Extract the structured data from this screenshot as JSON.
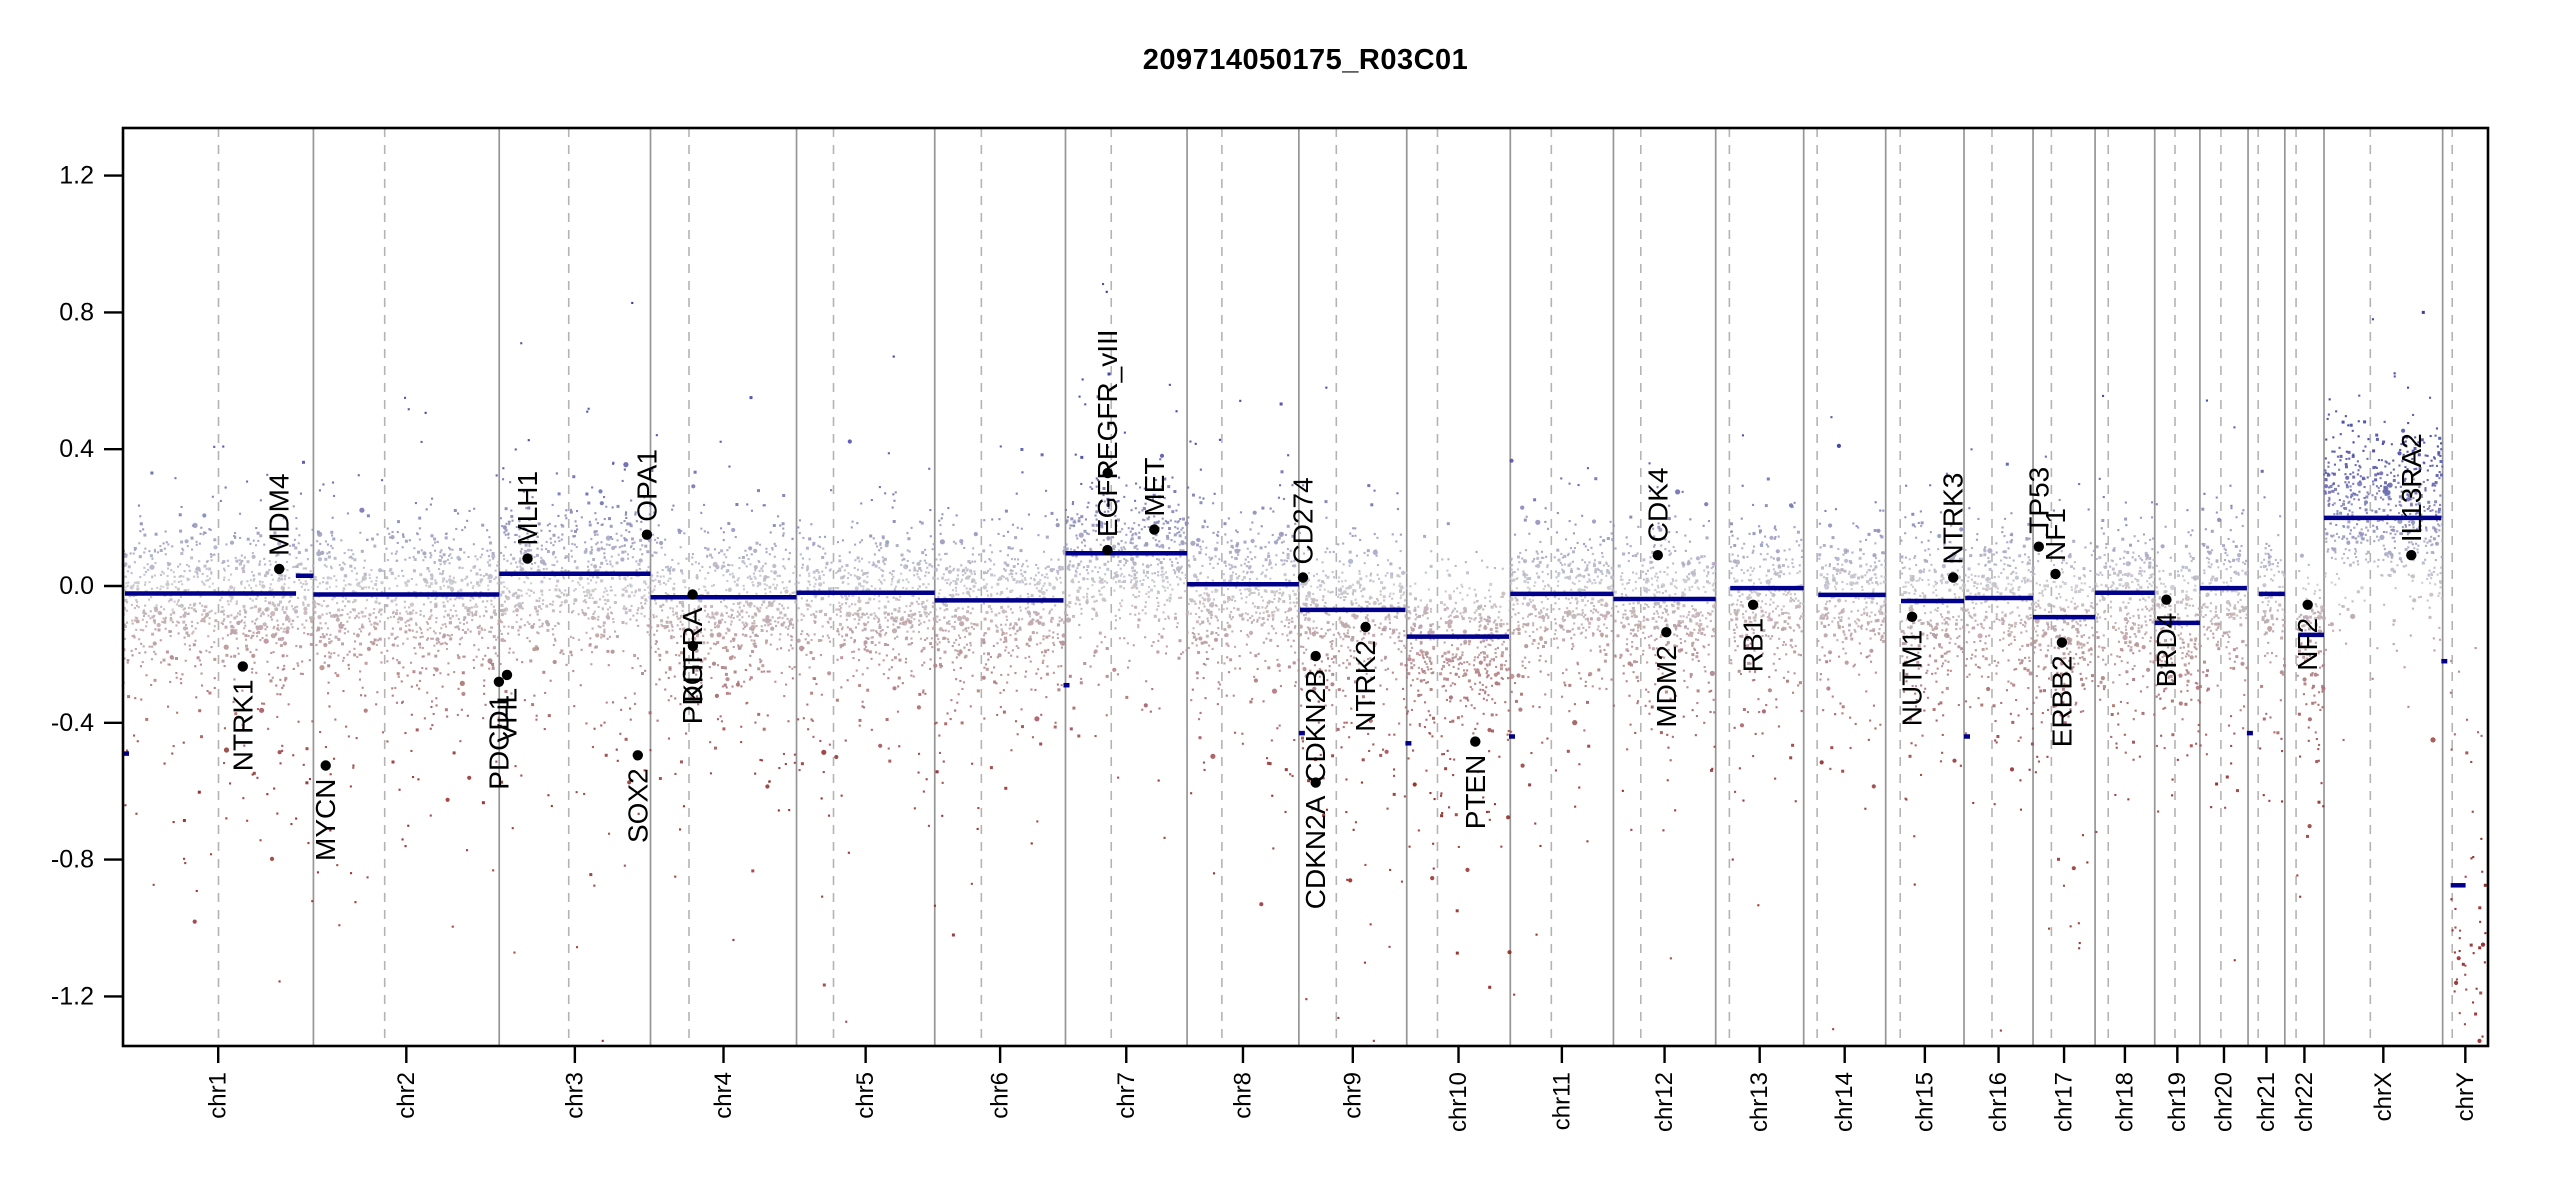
{
  "title": "209714050175_R03C01",
  "chart_data": {
    "type": "scatter",
    "subtype": "genome-wide-copy-number-plot",
    "title": "209714050175_R03C01",
    "xlabel": "",
    "ylabel": "",
    "grid": "chromosome-boundaries-solid, centromeres-dashed",
    "legend": "none",
    "ylim": [
      -1.34,
      1.34
    ],
    "y_ticks": [
      1.2,
      0.8,
      0.4,
      0.0,
      -0.4,
      -0.8,
      -1.2
    ],
    "y_tick_labels": [
      "1.2",
      "0.8",
      "0.4",
      "0.0",
      "-0.4",
      "-0.8",
      "-1.2"
    ],
    "x_tick_labels": [
      "chr1",
      "chr2",
      "chr3",
      "chr4",
      "chr5",
      "chr6",
      "chr7",
      "chr8",
      "chr9",
      "chr10",
      "chr11",
      "chr12",
      "chr13",
      "chr14",
      "chr15",
      "chr16",
      "chr17",
      "chr18",
      "chr19",
      "chr20",
      "chr21",
      "chr22",
      "chrX",
      "chrY"
    ],
    "chromosomes": [
      {
        "name": "chr1",
        "length_mb": 249.25,
        "centromere_mb": 125.0,
        "acrocentric": false,
        "baseline": -0.022,
        "down_tail": 1.15,
        "up_tail": 1.0
      },
      {
        "name": "chr2",
        "length_mb": 243.2,
        "centromere_mb": 93.3,
        "acrocentric": false,
        "baseline": -0.025,
        "down_tail": 1.0,
        "up_tail": 1.0
      },
      {
        "name": "chr3",
        "length_mb": 198.02,
        "centromere_mb": 91.0,
        "acrocentric": false,
        "baseline": 0.036,
        "down_tail": 1.1,
        "up_tail": 1.0
      },
      {
        "name": "chr4",
        "length_mb": 191.15,
        "centromere_mb": 50.4,
        "acrocentric": false,
        "baseline": -0.033,
        "down_tail": 1.0,
        "up_tail": 1.0
      },
      {
        "name": "chr5",
        "length_mb": 180.92,
        "centromere_mb": 48.4,
        "acrocentric": false,
        "baseline": -0.02,
        "down_tail": 1.0,
        "up_tail": 1.0
      },
      {
        "name": "chr6",
        "length_mb": 171.12,
        "centromere_mb": 61.0,
        "acrocentric": false,
        "baseline": -0.042,
        "down_tail": 1.0,
        "up_tail": 1.0
      },
      {
        "name": "chr7",
        "length_mb": 159.14,
        "centromere_mb": 59.9,
        "acrocentric": false,
        "baseline": 0.096,
        "down_tail": 0.9,
        "up_tail": 1.4
      },
      {
        "name": "chr8",
        "length_mb": 146.36,
        "centromere_mb": 45.6,
        "acrocentric": false,
        "baseline": 0.005,
        "down_tail": 1.0,
        "up_tail": 1.1
      },
      {
        "name": "chr9",
        "length_mb": 141.21,
        "centromere_mb": 49.0,
        "acrocentric": false,
        "baseline": -0.07,
        "down_tail": 1.35,
        "up_tail": 1.0
      },
      {
        "name": "chr10",
        "length_mb": 135.53,
        "centromere_mb": 40.2,
        "acrocentric": false,
        "baseline": -0.148,
        "down_tail": 1.25,
        "up_tail": 0.9
      },
      {
        "name": "chr11",
        "length_mb": 135.01,
        "centromere_mb": 53.7,
        "acrocentric": false,
        "baseline": -0.023,
        "down_tail": 1.0,
        "up_tail": 1.0
      },
      {
        "name": "chr12",
        "length_mb": 133.85,
        "centromere_mb": 35.8,
        "acrocentric": false,
        "baseline": -0.038,
        "down_tail": 1.0,
        "up_tail": 1.0
      },
      {
        "name": "chr13",
        "length_mb": 115.17,
        "centromere_mb": 17.9,
        "acrocentric": true,
        "baseline": -0.006,
        "down_tail": 1.0,
        "up_tail": 1.0
      },
      {
        "name": "chr14",
        "length_mb": 107.35,
        "centromere_mb": 17.6,
        "acrocentric": true,
        "baseline": -0.026,
        "down_tail": 1.0,
        "up_tail": 1.0
      },
      {
        "name": "chr15",
        "length_mb": 102.53,
        "centromere_mb": 19.0,
        "acrocentric": true,
        "baseline": -0.044,
        "down_tail": 1.0,
        "up_tail": 1.0
      },
      {
        "name": "chr16",
        "length_mb": 90.35,
        "centromere_mb": 36.6,
        "acrocentric": false,
        "baseline": -0.035,
        "down_tail": 1.1,
        "up_tail": 1.0
      },
      {
        "name": "chr17",
        "length_mb": 81.2,
        "centromere_mb": 24.0,
        "acrocentric": false,
        "baseline": -0.091,
        "down_tail": 1.1,
        "up_tail": 1.0
      },
      {
        "name": "chr18",
        "length_mb": 78.08,
        "centromere_mb": 17.2,
        "acrocentric": false,
        "baseline": -0.02,
        "down_tail": 1.0,
        "up_tail": 1.0
      },
      {
        "name": "chr19",
        "length_mb": 59.13,
        "centromere_mb": 26.5,
        "acrocentric": false,
        "baseline": -0.108,
        "down_tail": 1.1,
        "up_tail": 1.0
      },
      {
        "name": "chr20",
        "length_mb": 63.03,
        "centromere_mb": 27.5,
        "acrocentric": false,
        "baseline": -0.006,
        "down_tail": 1.0,
        "up_tail": 1.0
      },
      {
        "name": "chr21",
        "length_mb": 48.13,
        "centromere_mb": 13.2,
        "acrocentric": true,
        "baseline": -0.023,
        "down_tail": 1.0,
        "up_tail": 1.0
      },
      {
        "name": "chr22",
        "length_mb": 51.3,
        "centromere_mb": 14.7,
        "acrocentric": true,
        "baseline": -0.143,
        "down_tail": 1.2,
        "up_tail": 1.0
      },
      {
        "name": "chrX",
        "length_mb": 155.27,
        "centromere_mb": 60.6,
        "acrocentric": false,
        "baseline": 0.24,
        "down_tail": 1.0,
        "up_tail": 1.0,
        "custom": "chrX"
      },
      {
        "name": "chrY",
        "length_mb": 59.37,
        "centromere_mb": 12.5,
        "acrocentric": true,
        "baseline": -1.0,
        "down_tail": 1.0,
        "up_tail": 1.0,
        "custom": "chrY"
      }
    ],
    "segments": [
      {
        "chrom": "chr1",
        "start_mb": 0,
        "end_mb": 2.5,
        "value": -0.49
      },
      {
        "chrom": "chr1",
        "start_mb": 2.5,
        "end_mb": 226.5,
        "value": -0.022
      },
      {
        "chrom": "chr1",
        "start_mb": 226.5,
        "end_mb": 249.25,
        "value": 0.03
      },
      {
        "chrom": "chr2",
        "start_mb": 0,
        "end_mb": 243.2,
        "value": -0.025
      },
      {
        "chrom": "chr3",
        "start_mb": 0,
        "end_mb": 198.02,
        "value": 0.036
      },
      {
        "chrom": "chr4",
        "start_mb": 0,
        "end_mb": 191.15,
        "value": -0.033
      },
      {
        "chrom": "chr5",
        "start_mb": 0,
        "end_mb": 180.92,
        "value": -0.02
      },
      {
        "chrom": "chr6",
        "start_mb": 0,
        "end_mb": 168.5,
        "value": -0.042
      },
      {
        "chrom": "chr6",
        "start_mb": 168.5,
        "end_mb": 171.12,
        "value": -0.29
      },
      {
        "chrom": "chr7",
        "start_mb": 0,
        "end_mb": 159.14,
        "value": 0.096
      },
      {
        "chrom": "chr8",
        "start_mb": 0,
        "end_mb": 146.36,
        "value": 0.005
      },
      {
        "chrom": "chr9",
        "start_mb": 0,
        "end_mb": 1.5,
        "value": -0.43
      },
      {
        "chrom": "chr9",
        "start_mb": 1.5,
        "end_mb": 139.5,
        "value": -0.07
      },
      {
        "chrom": "chr9",
        "start_mb": 139.5,
        "end_mb": 141.21,
        "value": -0.46
      },
      {
        "chrom": "chr10",
        "start_mb": 0,
        "end_mb": 133.8,
        "value": -0.148
      },
      {
        "chrom": "chr10",
        "start_mb": 133.8,
        "end_mb": 135.53,
        "value": -0.44
      },
      {
        "chrom": "chr11",
        "start_mb": 0,
        "end_mb": 135.01,
        "value": -0.023
      },
      {
        "chrom": "chr12",
        "start_mb": 0,
        "end_mb": 133.85,
        "value": -0.038
      },
      {
        "chrom": "chr13",
        "start_mb": 19,
        "end_mb": 115.17,
        "value": -0.006
      },
      {
        "chrom": "chr14",
        "start_mb": 19,
        "end_mb": 107.35,
        "value": -0.026
      },
      {
        "chrom": "chr15",
        "start_mb": 20,
        "end_mb": 102.53,
        "value": -0.044
      },
      {
        "chrom": "chr16",
        "start_mb": 0,
        "end_mb": 1.5,
        "value": -0.44
      },
      {
        "chrom": "chr16",
        "start_mb": 1.5,
        "end_mb": 90.35,
        "value": -0.035
      },
      {
        "chrom": "chr17",
        "start_mb": 0,
        "end_mb": 81.2,
        "value": -0.091
      },
      {
        "chrom": "chr18",
        "start_mb": 0,
        "end_mb": 78.08,
        "value": -0.02
      },
      {
        "chrom": "chr19",
        "start_mb": 0,
        "end_mb": 59.13,
        "value": -0.108
      },
      {
        "chrom": "chr20",
        "start_mb": 0,
        "end_mb": 61.5,
        "value": -0.006
      },
      {
        "chrom": "chr20",
        "start_mb": 61.5,
        "end_mb": 63.03,
        "value": -0.43
      },
      {
        "chrom": "chr21",
        "start_mb": 14,
        "end_mb": 48.13,
        "value": -0.023
      },
      {
        "chrom": "chr22",
        "start_mb": 17.5,
        "end_mb": 51.3,
        "value": -0.143
      },
      {
        "chrom": "chrX",
        "start_mb": 0,
        "end_mb": 153.5,
        "value": 0.199
      },
      {
        "chrom": "chrX",
        "start_mb": 153.5,
        "end_mb": 155.27,
        "value": -0.22
      },
      {
        "chrom": "chrY",
        "start_mb": 10.5,
        "end_mb": 30,
        "value": -0.875
      }
    ],
    "genes": [
      {
        "name": "MDM4",
        "chrom": "chr1",
        "mb": 204.5,
        "value": 0.05,
        "side": "above"
      },
      {
        "name": "NTRK1",
        "chrom": "chr1",
        "mb": 156.8,
        "value": -0.235,
        "side": "below"
      },
      {
        "name": "MYCN",
        "chrom": "chr2",
        "mb": 16.1,
        "value": -0.525,
        "side": "below"
      },
      {
        "name": "PDCD1",
        "chrom": "chr2",
        "mb": 242.8,
        "value": -0.28,
        "side": "below"
      },
      {
        "name": "VHL",
        "chrom": "chr3",
        "mb": 10.2,
        "value": -0.26,
        "side": "below"
      },
      {
        "name": "MLH1",
        "chrom": "chr3",
        "mb": 37.0,
        "value": 0.08,
        "side": "above"
      },
      {
        "name": "SOX2",
        "chrom": "chr3",
        "mb": 181.4,
        "value": -0.495,
        "side": "below"
      },
      {
        "name": "OPA1",
        "chrom": "chr3",
        "mb": 193.3,
        "value": 0.15,
        "side": "above"
      },
      {
        "name": "PDGFRA",
        "chrom": "chr4",
        "mb": 55.1,
        "value": -0.025,
        "side": "below"
      },
      {
        "name": "KIT",
        "chrom": "chr4",
        "mb": 55.5,
        "value": -0.175,
        "side": "below"
      },
      {
        "name": "EGFR",
        "chrom": "chr7",
        "mb": 55.0,
        "value": 0.105,
        "side": "above"
      },
      {
        "name": "EGFR_vIII",
        "chrom": "chr7",
        "mb": 55.3,
        "value": 0.33,
        "side": "above"
      },
      {
        "name": "MET",
        "chrom": "chr7",
        "mb": 116.3,
        "value": 0.165,
        "side": "above"
      },
      {
        "name": "CD274",
        "chrom": "chr9",
        "mb": 5.45,
        "value": 0.025,
        "side": "above"
      },
      {
        "name": "CDKN2A",
        "chrom": "chr9",
        "mb": 21.97,
        "value": -0.575,
        "side": "below"
      },
      {
        "name": "CDKN2B",
        "chrom": "chr9",
        "mb": 22.0,
        "value": -0.205,
        "side": "below"
      },
      {
        "name": "NTRK2",
        "chrom": "chr9",
        "mb": 87.3,
        "value": -0.12,
        "side": "below"
      },
      {
        "name": "PTEN",
        "chrom": "chr10",
        "mb": 89.7,
        "value": -0.455,
        "side": "below"
      },
      {
        "name": "CDK4",
        "chrom": "chr12",
        "mb": 58.1,
        "value": 0.09,
        "side": "above"
      },
      {
        "name": "MDM2",
        "chrom": "chr12",
        "mb": 69.2,
        "value": -0.135,
        "side": "below"
      },
      {
        "name": "RB1",
        "chrom": "chr13",
        "mb": 48.9,
        "value": -0.055,
        "side": "below"
      },
      {
        "name": "NUTM1",
        "chrom": "chr15",
        "mb": 34.6,
        "value": -0.09,
        "side": "below"
      },
      {
        "name": "NTRK3",
        "chrom": "chr15",
        "mb": 88.4,
        "value": 0.025,
        "side": "above"
      },
      {
        "name": "TP53",
        "chrom": "chr17",
        "mb": 7.57,
        "value": 0.115,
        "side": "above"
      },
      {
        "name": "NF1",
        "chrom": "chr17",
        "mb": 29.4,
        "value": 0.035,
        "side": "above"
      },
      {
        "name": "ERBB2",
        "chrom": "chr17",
        "mb": 37.8,
        "value": -0.165,
        "side": "below"
      },
      {
        "name": "BRD4",
        "chrom": "chr19",
        "mb": 15.3,
        "value": -0.04,
        "side": "below"
      },
      {
        "name": "NF2",
        "chrom": "chr22",
        "mb": 30.0,
        "value": -0.055,
        "side": "below"
      },
      {
        "name": "IL13RA2",
        "chrom": "chrX",
        "mb": 114.25,
        "value": 0.09,
        "side": "above"
      }
    ],
    "outlier_points": [
      {
        "chrom": "chr7",
        "mb": 54,
        "value": 0.86
      },
      {
        "chrom": "chr7",
        "mb": 57,
        "value": 0.62
      },
      {
        "chrom": "chr2",
        "mb": 120,
        "value": 0.55
      },
      {
        "chrom": "chr9",
        "mb": 36,
        "value": 0.58
      },
      {
        "chrom": "chrX",
        "mb": 64,
        "value": 0.78
      },
      {
        "chrom": "chrX",
        "mb": 110,
        "value": 0.58
      }
    ],
    "scatter_params": {
      "seed": 20175,
      "density_per_mb": 3.6,
      "core_sd": 0.095,
      "down_tail_p": 0.3,
      "down_tail_scale": 0.17,
      "up_tail_p": 0.1,
      "up_tail_scale": 0.1,
      "centromere_gap_mb": 2.3,
      "value_clip": [
        -1.33,
        0.9
      ]
    },
    "colors": {
      "point_zero": "#c6c5ca",
      "point_gain": "#3e3ea2",
      "point_gain_strong": "#2b2b8f",
      "point_loss": "#922626",
      "segment": "#00008B",
      "gene_marker": "#000000",
      "boundary_line": "#969696",
      "centromere_line": "#b4b4b4",
      "box": "#000000",
      "text": "#000000",
      "background": "#ffffff"
    }
  }
}
